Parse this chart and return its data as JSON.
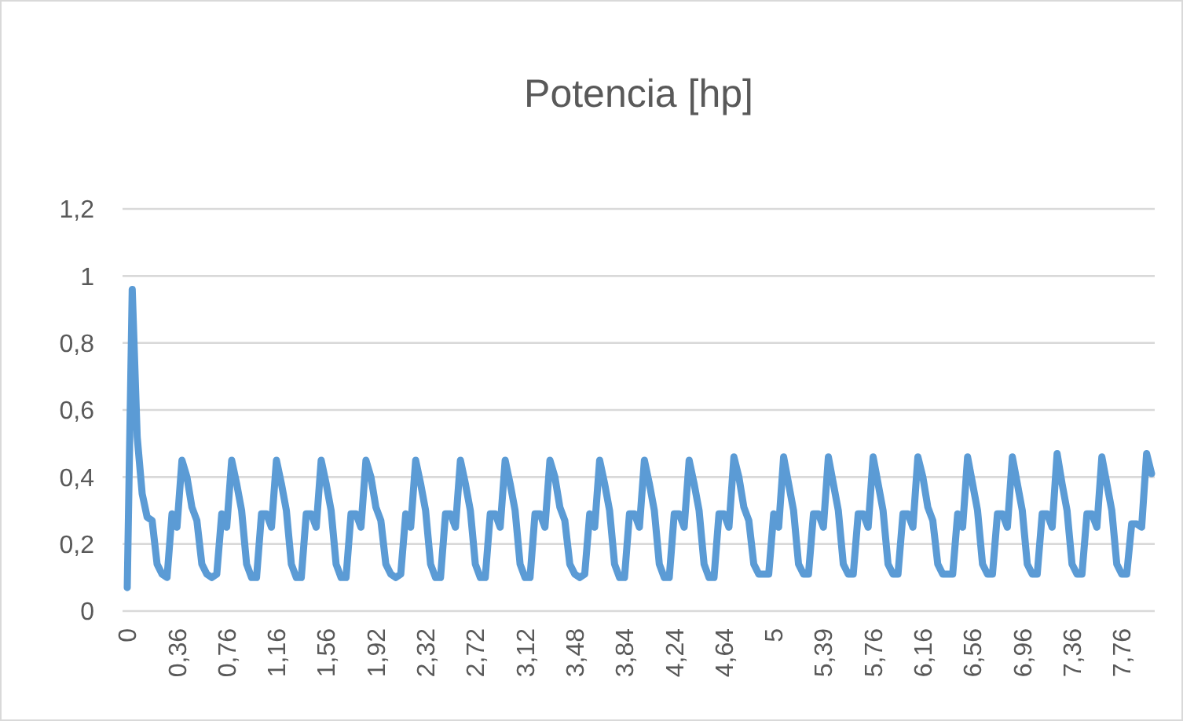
{
  "chart_data": {
    "type": "line",
    "title": "Potencia [hp]",
    "categories": [
      "0",
      null,
      null,
      null,
      null,
      null,
      null,
      null,
      null,
      null,
      "0,36",
      null,
      null,
      null,
      null,
      null,
      null,
      null,
      null,
      null,
      "0,76",
      null,
      null,
      null,
      null,
      null,
      null,
      null,
      null,
      null,
      "1,16",
      null,
      null,
      null,
      null,
      null,
      null,
      null,
      null,
      null,
      "1,56",
      null,
      null,
      null,
      null,
      null,
      null,
      null,
      null,
      null,
      "1,92",
      null,
      null,
      null,
      null,
      null,
      null,
      null,
      null,
      null,
      "2,32",
      null,
      null,
      null,
      null,
      null,
      null,
      null,
      null,
      null,
      "2,72",
      null,
      null,
      null,
      null,
      null,
      null,
      null,
      null,
      null,
      "3,12",
      null,
      null,
      null,
      null,
      null,
      null,
      null,
      null,
      null,
      "3,48",
      null,
      null,
      null,
      null,
      null,
      null,
      null,
      null,
      null,
      "3,84",
      null,
      null,
      null,
      null,
      null,
      null,
      null,
      null,
      null,
      "4,24",
      null,
      null,
      null,
      null,
      null,
      null,
      null,
      null,
      null,
      "4,64",
      null,
      null,
      null,
      null,
      null,
      null,
      null,
      null,
      null,
      "5",
      null,
      null,
      null,
      null,
      null,
      null,
      null,
      null,
      null,
      "5,39",
      null,
      null,
      null,
      null,
      null,
      null,
      null,
      null,
      null,
      "5,76",
      null,
      null,
      null,
      null,
      null,
      null,
      null,
      null,
      null,
      "6,16",
      null,
      null,
      null,
      null,
      null,
      null,
      null,
      null,
      null,
      "6,56",
      null,
      null,
      null,
      null,
      null,
      null,
      null,
      null,
      null,
      "6,96",
      null,
      null,
      null,
      null,
      null,
      null,
      null,
      null,
      null,
      "7,36",
      null,
      null,
      null,
      null,
      null,
      null,
      null,
      null,
      null,
      "7,76",
      null,
      null,
      null,
      null,
      null,
      null
    ],
    "series": [
      {
        "color": "#5b9bd5",
        "values": [
          0.07,
          0.96,
          0.52,
          0.35,
          0.28,
          0.27,
          0.14,
          0.11,
          0.1,
          0.29,
          0.25,
          0.45,
          0.4,
          0.31,
          0.27,
          0.14,
          0.11,
          0.1,
          0.11,
          0.29,
          0.25,
          0.45,
          0.38,
          0.3,
          0.14,
          0.1,
          0.1,
          0.29,
          0.29,
          0.25,
          0.45,
          0.38,
          0.3,
          0.14,
          0.1,
          0.1,
          0.29,
          0.29,
          0.25,
          0.45,
          0.38,
          0.3,
          0.14,
          0.1,
          0.1,
          0.29,
          0.29,
          0.25,
          0.45,
          0.4,
          0.31,
          0.27,
          0.14,
          0.11,
          0.1,
          0.11,
          0.29,
          0.25,
          0.45,
          0.38,
          0.3,
          0.14,
          0.1,
          0.1,
          0.29,
          0.29,
          0.25,
          0.45,
          0.38,
          0.3,
          0.14,
          0.1,
          0.1,
          0.29,
          0.29,
          0.25,
          0.45,
          0.38,
          0.3,
          0.14,
          0.1,
          0.1,
          0.29,
          0.29,
          0.25,
          0.45,
          0.4,
          0.31,
          0.27,
          0.14,
          0.11,
          0.1,
          0.11,
          0.29,
          0.25,
          0.45,
          0.38,
          0.3,
          0.14,
          0.1,
          0.1,
          0.29,
          0.29,
          0.25,
          0.45,
          0.38,
          0.3,
          0.14,
          0.1,
          0.1,
          0.29,
          0.29,
          0.25,
          0.45,
          0.38,
          0.3,
          0.14,
          0.1,
          0.1,
          0.29,
          0.29,
          0.25,
          0.46,
          0.4,
          0.31,
          0.27,
          0.14,
          0.11,
          0.11,
          0.11,
          0.29,
          0.25,
          0.46,
          0.38,
          0.3,
          0.14,
          0.11,
          0.11,
          0.29,
          0.29,
          0.25,
          0.46,
          0.38,
          0.3,
          0.14,
          0.11,
          0.11,
          0.29,
          0.29,
          0.25,
          0.46,
          0.38,
          0.3,
          0.14,
          0.11,
          0.11,
          0.29,
          0.29,
          0.25,
          0.46,
          0.4,
          0.31,
          0.27,
          0.14,
          0.11,
          0.11,
          0.11,
          0.29,
          0.25,
          0.46,
          0.38,
          0.3,
          0.14,
          0.11,
          0.11,
          0.29,
          0.29,
          0.25,
          0.46,
          0.38,
          0.3,
          0.14,
          0.11,
          0.11,
          0.29,
          0.29,
          0.25,
          0.47,
          0.38,
          0.3,
          0.14,
          0.11,
          0.11,
          0.29,
          0.29,
          0.25,
          0.46,
          0.38,
          0.3,
          0.14,
          0.11,
          0.11,
          0.26,
          0.26,
          0.25,
          0.47,
          0.41
        ]
      }
    ],
    "ylim": [
      0,
      1.2
    ],
    "yticks": [
      0,
      {
        "value": 0.2,
        "label": "0,2"
      },
      {
        "value": 0.4,
        "label": "0,4"
      },
      {
        "value": 0.6,
        "label": "0,6"
      },
      {
        "value": 0.8,
        "label": "0,8"
      },
      1,
      {
        "value": 1.2,
        "label": "1,2"
      }
    ],
    "grid": "y",
    "marker": "none",
    "line_style": "solid"
  }
}
